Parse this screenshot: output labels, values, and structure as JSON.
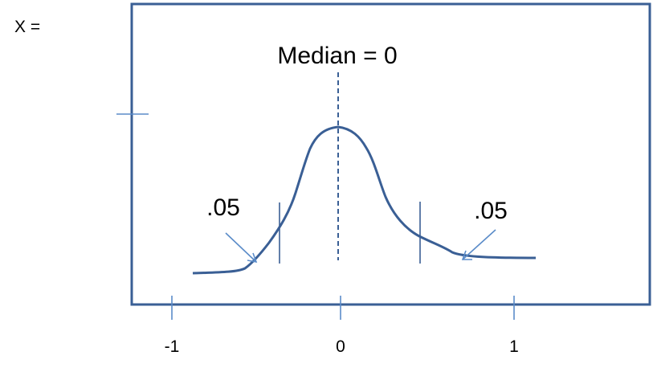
{
  "variable_label": "X =",
  "median_label": "Median = 0",
  "left_tail_label": ".05",
  "right_tail_label": ".05",
  "axis": {
    "ticks": [
      "-1",
      "0",
      "1"
    ]
  },
  "colors": {
    "curve": "#3a5f95",
    "frame": "#3a5f95",
    "lines": "#5b8cc9",
    "text": "#000000"
  }
}
